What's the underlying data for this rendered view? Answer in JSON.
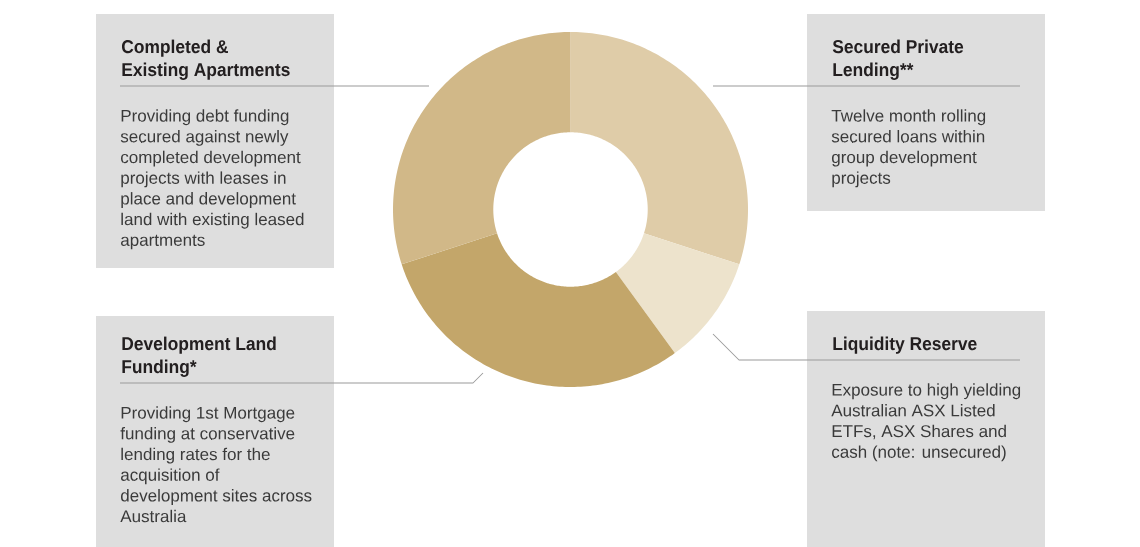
{
  "chart_data": {
    "type": "donut",
    "categories": [
      "Secured Private Lending**",
      "Liquidity Reserve",
      "Development Land Funding*",
      "Completed & Existing Apartments"
    ],
    "values": [
      30,
      10,
      30,
      30
    ],
    "colors": [
      "#dfcca8",
      "#ede3cc",
      "#c3a66a",
      "#d1b888"
    ],
    "annotations": [
      "Twelve month rolling secured loans within group development projects",
      "Exposure to high yielding Australian ASX Listed ETFs, ASX Shares and cash (note: unsecured)",
      "Providing 1st Mortgage funding at conservative lending rates for the acquisition of development sites across Australia",
      "Providing debt funding secured against newly completed development projects with leases in place and development land with existing leased apartments"
    ]
  }
}
